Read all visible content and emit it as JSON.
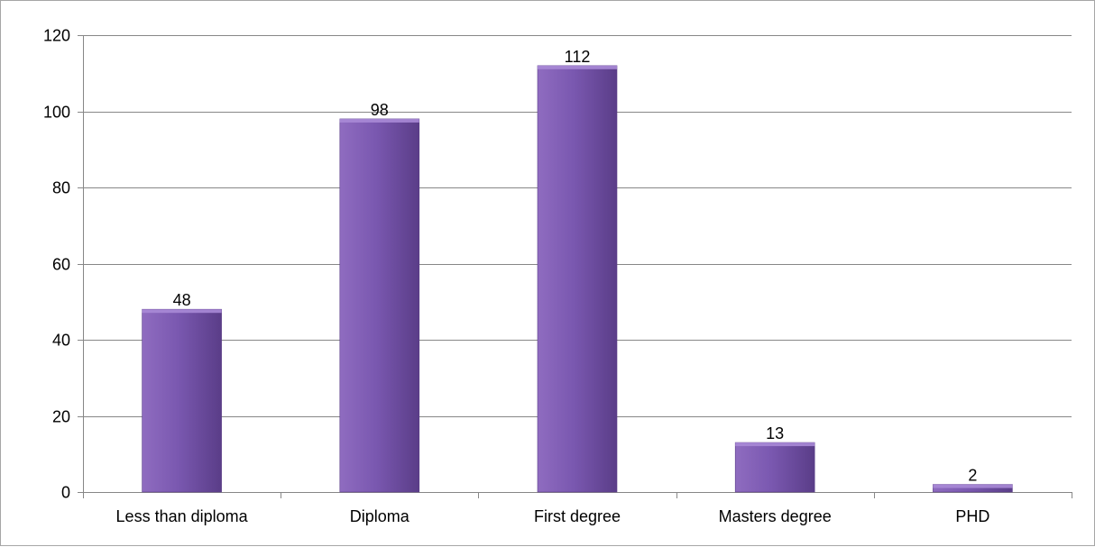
{
  "chart_data": {
    "type": "bar",
    "title": "",
    "xlabel": "",
    "ylabel": "",
    "categories": [
      "Less than diploma",
      "Diploma",
      "First degree",
      "Masters degree",
      "PHD"
    ],
    "values": [
      48,
      98,
      112,
      13,
      2
    ],
    "data_labels": [
      "48",
      "98",
      "112",
      "13",
      "2"
    ],
    "ylim": [
      0,
      120
    ],
    "yticks": [
      0,
      20,
      40,
      60,
      80,
      100,
      120
    ],
    "ytick_labels": [
      "0",
      "20",
      "40",
      "60",
      "80",
      "100",
      "120"
    ],
    "grid": true,
    "legend": "none",
    "colors": {
      "bar_light": "#8f6cc0",
      "bar_mid": "#7a58b0",
      "bar_dark": "#5a3d88",
      "bar_top": "#a98ad6",
      "gridline": "#878787",
      "axis": "#878787"
    }
  }
}
